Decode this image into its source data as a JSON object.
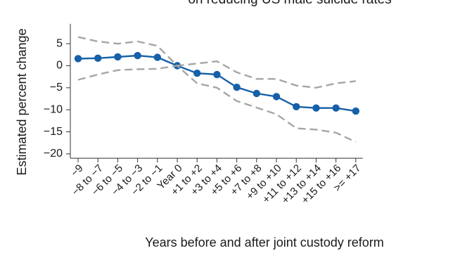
{
  "chart_data": {
    "type": "line",
    "title": "on reducing US male suicide rates",
    "xlabel": "Years before and after joint custody reform",
    "ylabel": "Estimated percent change",
    "categories": [
      "−9",
      "−8 to −7",
      "−6 to −5",
      "−4 to −3",
      "−2 to −1",
      "Year 0",
      "+1 to +2",
      "+3 to +4",
      "+5 to +6",
      "+7 to +8",
      "+9 to +10",
      "+11 to +12",
      "+13 to +14",
      "+15 to +16",
      ">= +17"
    ],
    "yticks": [
      5,
      0,
      -5,
      -10,
      -15,
      -20
    ],
    "ytick_labels": [
      "5",
      "0",
      "−5",
      "−10",
      "−15",
      "−20"
    ],
    "ylim": [
      -21,
      9.5
    ],
    "grid": false,
    "series": [
      {
        "role": "estimate",
        "style": "solid-markers",
        "values": [
          1.6,
          1.7,
          2.0,
          2.3,
          1.9,
          0.0,
          -1.7,
          -2.0,
          -4.9,
          -6.3,
          -7.0,
          -9.3,
          -9.6,
          -9.6,
          -10.3
        ]
      },
      {
        "role": "upper-ci",
        "style": "dashed",
        "values": [
          6.5,
          5.5,
          5.0,
          5.5,
          4.5,
          0.0,
          0.5,
          1.0,
          -1.5,
          -3.0,
          -3.0,
          -4.5,
          -5.0,
          -4.0,
          -3.5
        ]
      },
      {
        "role": "lower-ci",
        "style": "dashed",
        "values": [
          -3.2,
          -2.0,
          -1.0,
          -0.8,
          -0.7,
          0.0,
          -4.0,
          -5.0,
          -8.0,
          -9.5,
          -11.0,
          -14.2,
          -14.5,
          -15.2,
          -17.3
        ]
      }
    ],
    "colors": {
      "estimate": "#1560a8",
      "ci": "#a6a6a6",
      "axis": "#333333",
      "text": "#1a1a1a"
    }
  }
}
